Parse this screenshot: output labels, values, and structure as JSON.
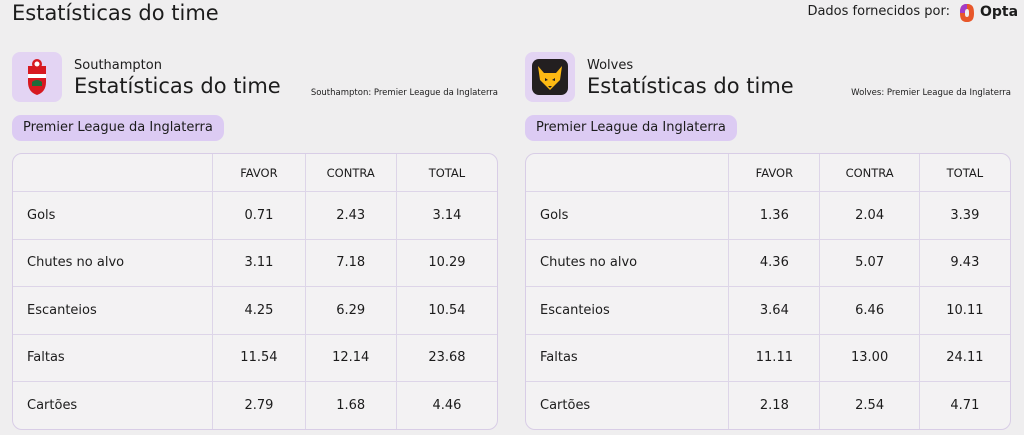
{
  "header": {
    "title": "Estatísticas do time",
    "provider_label": "Dados fornecidos por:",
    "provider_name": "Opta"
  },
  "teams": [
    {
      "name": "Southampton",
      "title": "Estatísticas do time",
      "note": "Southampton: Premier League da Inglaterra",
      "competition": "Premier League da Inglaterra",
      "table": {
        "columns": [
          "FAVOR",
          "CONTRA",
          "TOTAL"
        ],
        "rows": [
          [
            "Gols",
            "0.71",
            "2.43",
            "3.14"
          ],
          [
            "Chutes no alvo",
            "3.11",
            "7.18",
            "10.29"
          ],
          [
            "Escanteios",
            "4.25",
            "6.29",
            "10.54"
          ],
          [
            "Faltas",
            "11.54",
            "12.14",
            "23.68"
          ],
          [
            "Cartões",
            "2.79",
            "1.68",
            "4.46"
          ]
        ]
      }
    },
    {
      "name": "Wolves",
      "title": "Estatísticas do time",
      "note": "Wolves: Premier League da Inglaterra",
      "competition": "Premier League da Inglaterra",
      "table": {
        "columns": [
          "FAVOR",
          "CONTRA",
          "TOTAL"
        ],
        "rows": [
          [
            "Gols",
            "1.36",
            "2.04",
            "3.39"
          ],
          [
            "Chutes no alvo",
            "4.36",
            "5.07",
            "9.43"
          ],
          [
            "Escanteios",
            "3.64",
            "6.46",
            "10.11"
          ],
          [
            "Faltas",
            "11.11",
            "13.00",
            "24.11"
          ],
          [
            "Cartões",
            "2.18",
            "2.54",
            "4.71"
          ]
        ]
      }
    }
  ]
}
